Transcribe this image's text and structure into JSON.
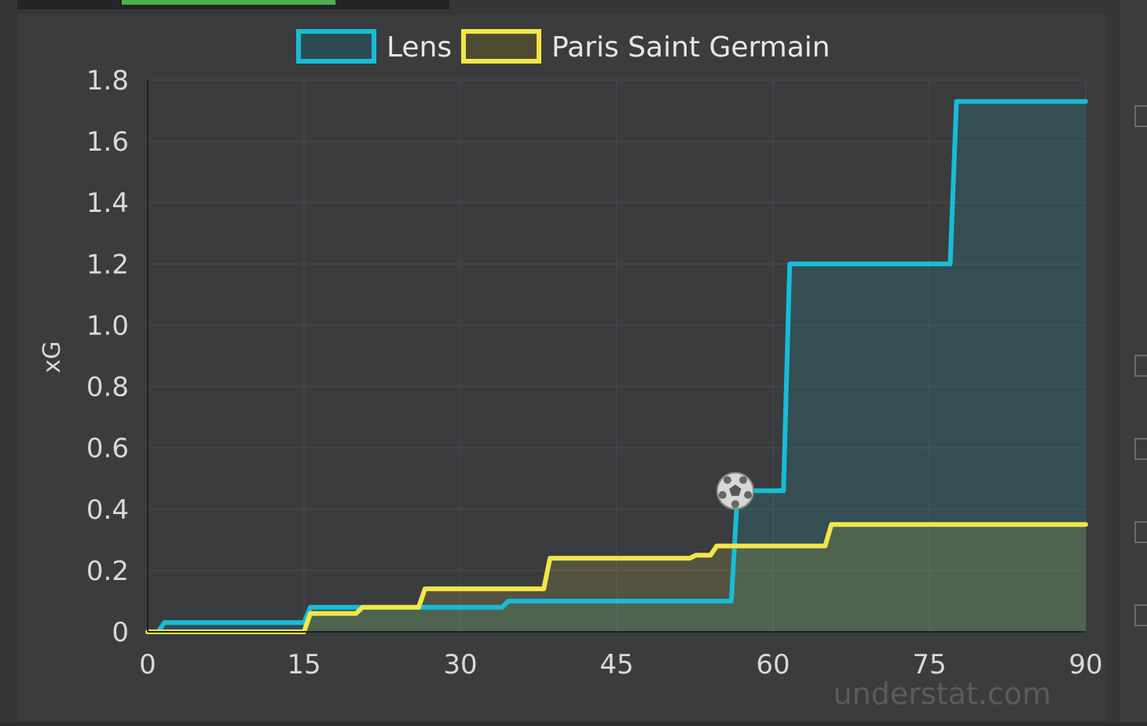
{
  "colors": {
    "lens": "#18bcd8",
    "psg": "#f2e64a",
    "lens_fill": "rgba(24,188,216,0.14)",
    "psg_fill": "rgba(242,230,74,0.14)"
  },
  "chart_data": {
    "type": "line",
    "xlabel": "",
    "ylabel": "xG",
    "xlim": [
      0,
      90
    ],
    "ylim": [
      0,
      1.8
    ],
    "x_ticks": [
      "0",
      "15",
      "30",
      "45",
      "60",
      "75",
      "90"
    ],
    "y_ticks": [
      "0",
      "0.2",
      "0.4",
      "0.6",
      "0.8",
      "1.0",
      "1.2",
      "1.4",
      "1.6",
      "1.8"
    ],
    "grid": true,
    "legend_position": "top-center",
    "watermark": "understat.com",
    "series": [
      {
        "name": "Lens",
        "shots": [
          [
            0,
            0.0
          ],
          [
            1,
            0.03
          ],
          [
            15,
            0.08
          ],
          [
            34,
            0.1
          ],
          [
            56,
            0.46,
            "goal"
          ],
          [
            61,
            1.2
          ],
          [
            77,
            1.73
          ]
        ],
        "final_minute": 90
      },
      {
        "name": "Paris Saint Germain",
        "shots": [
          [
            0,
            0.0
          ],
          [
            15,
            0.06
          ],
          [
            20,
            0.08
          ],
          [
            26,
            0.14
          ],
          [
            38,
            0.24
          ],
          [
            52,
            0.25
          ],
          [
            54,
            0.28
          ],
          [
            65,
            0.35
          ]
        ],
        "final_minute": 90
      }
    ]
  }
}
